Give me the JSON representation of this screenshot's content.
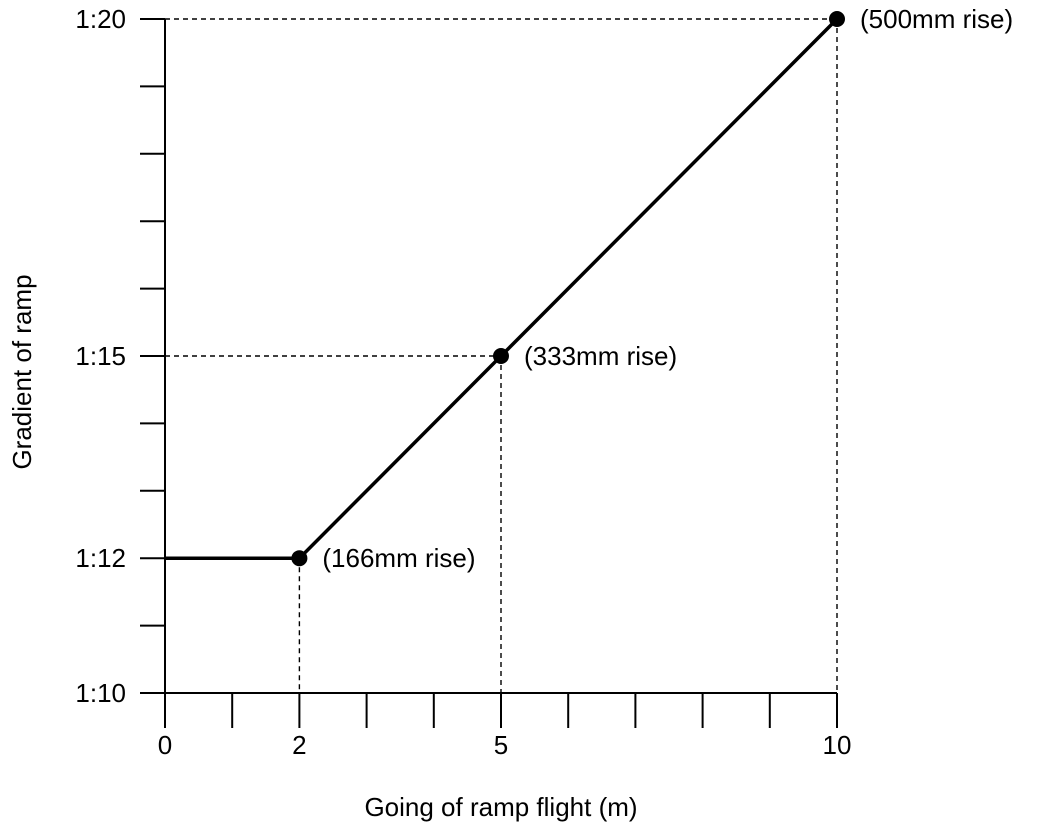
{
  "chart_data": {
    "type": "line",
    "title": "",
    "xlabel": "Going of ramp flight (m)",
    "ylabel": "Gradient of ramp",
    "xlim": [
      0,
      10
    ],
    "ylim": [
      10,
      20
    ],
    "grid": false,
    "x_minor_ticks": [
      0,
      1,
      2,
      3,
      4,
      5,
      6,
      7,
      8,
      9,
      10
    ],
    "x_tick_labels": [
      {
        "value": 0,
        "label": "0"
      },
      {
        "value": 2,
        "label": "2"
      },
      {
        "value": 5,
        "label": "5"
      },
      {
        "value": 10,
        "label": "10"
      }
    ],
    "y_minor_ticks": [
      10,
      11,
      12,
      13,
      14,
      15,
      16,
      17,
      18,
      19,
      20
    ],
    "y_tick_labels": [
      {
        "value": 10,
        "label": "1:10"
      },
      {
        "value": 12,
        "label": "1:12"
      },
      {
        "value": 15,
        "label": "1:15"
      },
      {
        "value": 20,
        "label": "1:20"
      }
    ],
    "series": [
      {
        "x": [
          0,
          2,
          5,
          10
        ],
        "y": [
          12,
          12,
          15,
          20
        ]
      }
    ],
    "markers": [
      {
        "x": 2,
        "y": 12,
        "label": "(166mm rise)"
      },
      {
        "x": 5,
        "y": 15,
        "label": "(333mm rise)"
      },
      {
        "x": 10,
        "y": 20,
        "label": "(500mm rise)"
      }
    ],
    "colors": {
      "line": "#000000",
      "marker": "#000000",
      "guide": "#000000"
    }
  }
}
